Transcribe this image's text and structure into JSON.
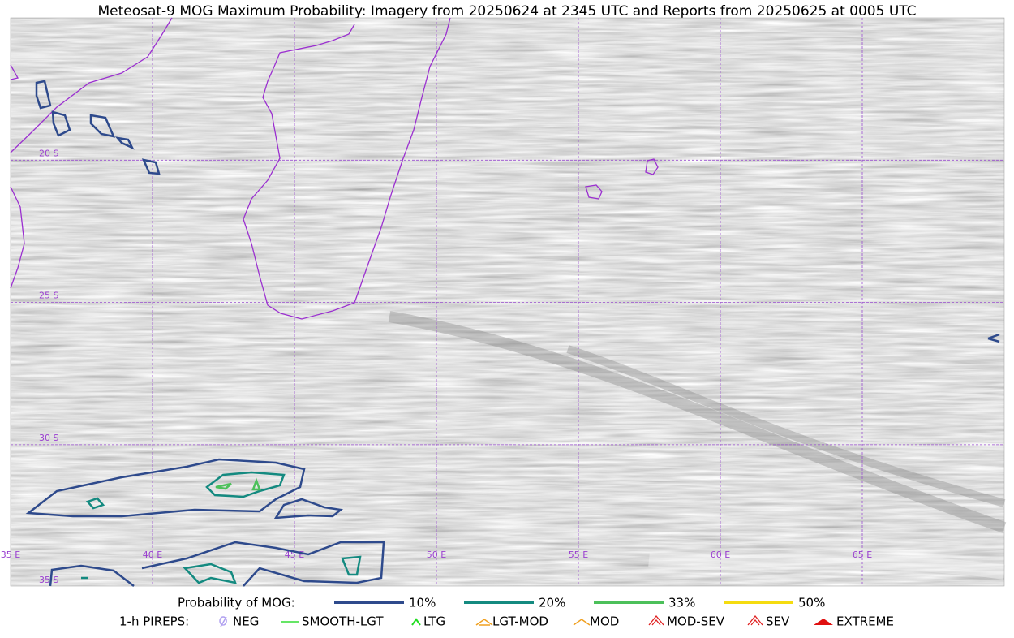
{
  "title": "Meteosat-9 MOG Maximum Probability: Imagery from 20250624 at 2345 UTC and Reports from 20250625 at 0005 UTC",
  "lat_labels": [
    "20 S",
    "25 S",
    "30 S",
    "35 S"
  ],
  "lon_labels": [
    "35 E",
    "40 E",
    "45 E",
    "50 E",
    "55 E",
    "60 E",
    "65 E"
  ],
  "legend": {
    "probability": {
      "label": "Probability of MOG:",
      "items": [
        "10%",
        "20%",
        "33%",
        "50%"
      ]
    },
    "pireps": {
      "label": "1-h PIREPS:",
      "items": [
        "NEG",
        "SMOOTH-LGT",
        "LTG",
        "LGT-MOD",
        "MOD",
        "MOD-SEV",
        "SEV",
        "EXTREME"
      ]
    }
  }
}
